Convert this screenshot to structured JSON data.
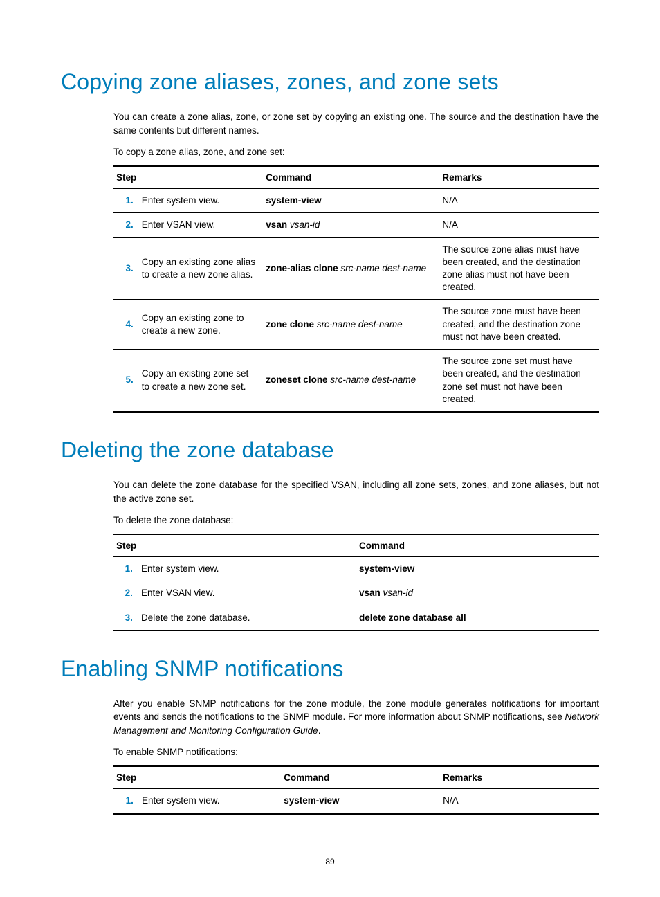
{
  "page_number": "89",
  "colors": {
    "heading": "#007dba",
    "text": "#000000",
    "rule": "#000000",
    "bg": "#ffffff"
  },
  "sections": [
    {
      "title": "Copying zone aliases, zones, and zone sets",
      "paras": [
        "You can create a zone alias, zone, or zone set by copying an existing one. The source and the destination have the same contents but different names."
      ],
      "lead": "To copy a zone alias, zone, and zone set:",
      "table": {
        "cols": [
          "Step",
          "Command",
          "Remarks"
        ],
        "widths": [
          "24px",
          "176px",
          "250px",
          "226px"
        ],
        "rows": [
          {
            "n": "1.",
            "step": "Enter system view.",
            "cmd": [
              {
                "t": "system-view",
                "b": true
              }
            ],
            "rem": "N/A"
          },
          {
            "n": "2.",
            "step": "Enter VSAN view.",
            "cmd": [
              {
                "t": "vsan ",
                "b": true
              },
              {
                "t": "vsan-id",
                "i": true
              }
            ],
            "rem": "N/A"
          },
          {
            "n": "3.",
            "step": "Copy an existing zone alias to create a new zone alias.",
            "cmd": [
              {
                "t": "zone-alias clone ",
                "b": true
              },
              {
                "t": "src-name dest-name",
                "i": true
              }
            ],
            "rem": "The source zone alias must have been created, and the destination zone alias must not have been created."
          },
          {
            "n": "4.",
            "step": "Copy an existing zone to create a new zone.",
            "cmd": [
              {
                "t": "zone clone ",
                "b": true
              },
              {
                "t": "src-name dest-name",
                "i": true
              }
            ],
            "rem": "The source zone must have been created, and the destination zone must not have been created."
          },
          {
            "n": "5.",
            "step": "Copy an existing zone set to create a new zone set.",
            "cmd": [
              {
                "t": "zoneset clone ",
                "b": true
              },
              {
                "t": "src-name dest-name",
                "i": true
              }
            ],
            "rem": "The source zone set must have been created, and the destination zone set must not have been created."
          }
        ]
      }
    },
    {
      "title": "Deleting the zone database",
      "paras": [
        "You can delete the zone database for the specified VSAN, including all zone sets, zones, and zone aliases, but not the active zone set."
      ],
      "lead": "To delete the zone database:",
      "table": {
        "cols": [
          "Step",
          "Command"
        ],
        "widths": [
          "24px",
          "316px",
          "352px"
        ],
        "rows": [
          {
            "n": "1.",
            "step": "Enter system view.",
            "cmd": [
              {
                "t": "system-view",
                "b": true
              }
            ]
          },
          {
            "n": "2.",
            "step": "Enter VSAN view.",
            "cmd": [
              {
                "t": "vsan ",
                "b": true
              },
              {
                "t": "vsan-id",
                "i": true
              }
            ]
          },
          {
            "n": "3.",
            "step": "Delete the zone database.",
            "cmd": [
              {
                "t": "delete zone database all",
                "b": true
              }
            ]
          }
        ]
      }
    },
    {
      "title": "Enabling SNMP notifications",
      "paras_rich": [
        [
          {
            "t": "After you enable SNMP notifications for the zone module, the zone module generates notifications for important events and sends the notifications to the SNMP module. For more information about SNMP notifications, see "
          },
          {
            "t": "Network Management and Monitoring Configuration Guide",
            "i": true
          },
          {
            "t": "."
          }
        ]
      ],
      "lead": "To enable SNMP notifications:",
      "table": {
        "cols": [
          "Step",
          "Command",
          "Remarks"
        ],
        "widths": [
          "24px",
          "200px",
          "224px",
          "224px"
        ],
        "rows": [
          {
            "n": "1.",
            "step": "Enter system view.",
            "cmd": [
              {
                "t": "system-view",
                "b": true
              }
            ],
            "rem": "N/A"
          }
        ]
      }
    }
  ]
}
